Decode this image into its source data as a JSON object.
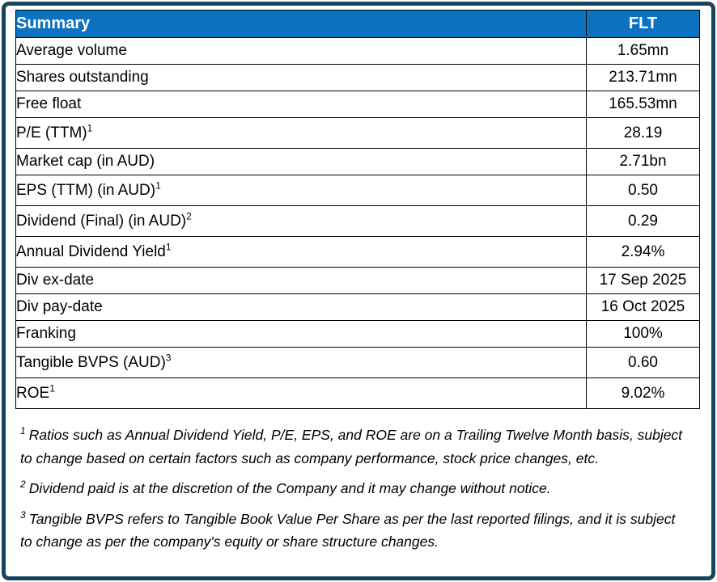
{
  "colors": {
    "header_bg": "#0D72BF",
    "header_text": "#FFFFFF",
    "outer_border": "#17465C",
    "table_border": "#000000",
    "body_text": "#000000"
  },
  "table": {
    "header": {
      "col1": "Summary",
      "col2": "FLT"
    },
    "rows": [
      {
        "label": "Average volume",
        "sup": "",
        "value": "1.65mn"
      },
      {
        "label": "Shares outstanding",
        "sup": "",
        "value": "213.71mn"
      },
      {
        "label": "Free float",
        "sup": "",
        "value": "165.53mn"
      },
      {
        "label": "P/E (TTM)",
        "sup": "1",
        "value": "28.19"
      },
      {
        "label": "Market cap (in AUD)",
        "sup": "",
        "value": "2.71bn"
      },
      {
        "label": "EPS (TTM) (in AUD)",
        "sup": "1",
        "value": "0.50"
      },
      {
        "label": "Dividend (Final) (in AUD)",
        "sup": "2",
        "value": "0.29"
      },
      {
        "label": "Annual Dividend Yield",
        "sup": "1",
        "value": "2.94%"
      },
      {
        "label": "Div ex-date",
        "sup": "",
        "value": "17 Sep 2025"
      },
      {
        "label": "Div pay-date",
        "sup": "",
        "value": "16 Oct 2025"
      },
      {
        "label": "Franking",
        "sup": "",
        "value": "100%"
      },
      {
        "label": "Tangible BVPS (AUD)",
        "sup": "3",
        "value": "0.60"
      },
      {
        "label": "ROE",
        "sup": "1",
        "value": "9.02%"
      }
    ]
  },
  "footnotes": [
    {
      "sup": "1",
      "text": "Ratios such as  Annual Dividend Yield, P/E, EPS, and ROE are on a Trailing Twelve Month basis, subject to change based on certain factors such as company performance, stock price changes, etc."
    },
    {
      "sup": "2",
      "text": "Dividend paid is at the discretion of the Company and it may change without notice."
    },
    {
      "sup": "3",
      "text": "Tangible BVPS refers to Tangible Book Value Per Share as per the last reported filings, and it is subject to change as per the company's equity or share structure changes."
    }
  ],
  "chart_data": {
    "type": "table",
    "title": "Summary",
    "columns": [
      "Summary",
      "FLT"
    ],
    "rows": [
      [
        "Average volume",
        "1.65mn"
      ],
      [
        "Shares outstanding",
        "213.71mn"
      ],
      [
        "Free float",
        "165.53mn"
      ],
      [
        "P/E (TTM)",
        "28.19"
      ],
      [
        "Market cap (in AUD)",
        "2.71bn"
      ],
      [
        "EPS (TTM) (in AUD)",
        "0.50"
      ],
      [
        "Dividend (Final) (in AUD)",
        "0.29"
      ],
      [
        "Annual Dividend Yield",
        "2.94%"
      ],
      [
        "Div ex-date",
        "17 Sep 2025"
      ],
      [
        "Div pay-date",
        "16 Oct 2025"
      ],
      [
        "Franking",
        "100%"
      ],
      [
        "Tangible BVPS (AUD)",
        "0.60"
      ],
      [
        "ROE",
        "9.02%"
      ]
    ]
  }
}
